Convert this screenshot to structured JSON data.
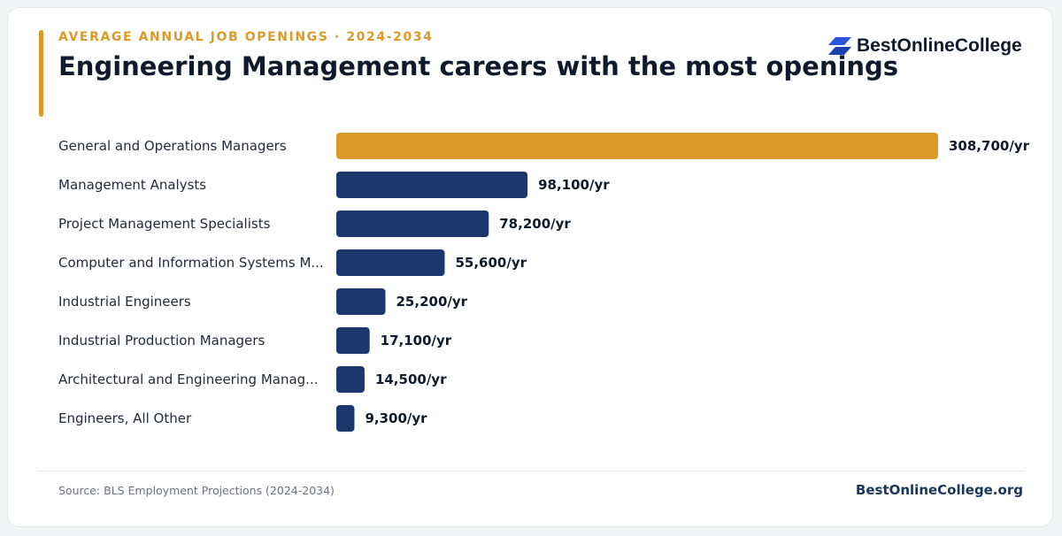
{
  "header": {
    "eyebrow": "AVERAGE ANNUAL JOB OPENINGS · 2024-2034",
    "title": "Engineering Management careers with the most openings"
  },
  "brand": {
    "logo_text": "BestOnlineCollege",
    "logo_icon": "stacked-parallelogram-icon",
    "site_url": "BestOnlineCollege.org"
  },
  "footer": {
    "source": "Source: BLS Employment Projections (2024-2034)"
  },
  "colors": {
    "highlight": "#db9a28",
    "bar": "#1b376b",
    "title": "#0f1b2d",
    "logo_blue": "#2b55e0"
  },
  "chart_data": {
    "type": "bar",
    "orientation": "horizontal",
    "title": "Engineering Management careers with the most openings",
    "categories": [
      "General and Operations Managers",
      "Management Analysts",
      "Project Management Specialists",
      "Computer and Information Systems M...",
      "Industrial Engineers",
      "Industrial Production Managers",
      "Architectural and Engineering Manag...",
      "Engineers, All Other"
    ],
    "values": [
      308700,
      98100,
      78200,
      55600,
      25200,
      17100,
      14500,
      9300
    ],
    "value_labels": [
      "308,700/yr",
      "98,100/yr",
      "78,200/yr",
      "55,600/yr",
      "25,200/yr",
      "17,100/yr",
      "14,500/yr",
      "9,300/yr"
    ],
    "highlight_index": 0,
    "xlim": [
      0,
      308700
    ],
    "grid": false,
    "legend": "none"
  }
}
